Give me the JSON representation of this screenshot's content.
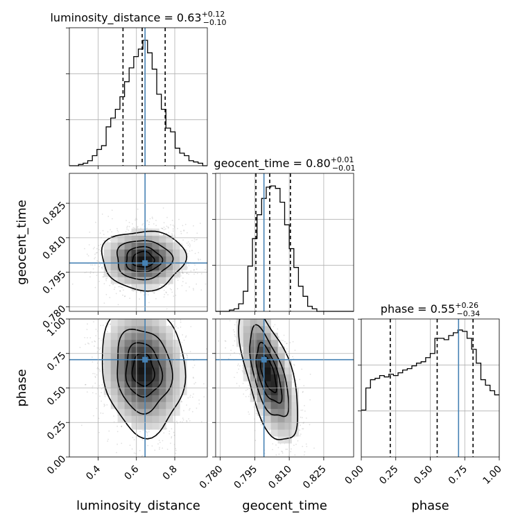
{
  "chart_data": {
    "type": "corner",
    "grid": true,
    "colors": {
      "truth": "#4682b4",
      "hist": "#000000",
      "density": "#000000",
      "quantile": "#000000",
      "grid": "#b0b0b0"
    },
    "parameters": [
      {
        "name": "luminosity_distance",
        "range": [
          0.25,
          0.97
        ],
        "ticks": [
          0.4,
          0.6,
          0.8
        ],
        "tick_labels": [
          "0.4",
          "0.6",
          "0.8"
        ]
      },
      {
        "name": "geocent_time",
        "range": [
          0.778,
          0.838
        ],
        "ticks": [
          0.78,
          0.795,
          0.81,
          0.825
        ],
        "tick_labels": [
          "0.780",
          "0.795",
          "0.810",
          "0.825"
        ]
      },
      {
        "name": "phase",
        "range": [
          0.0,
          1.0
        ],
        "ticks": [
          0.0,
          0.25,
          0.5,
          0.75,
          1.0
        ],
        "tick_labels": [
          "0.00",
          "0.25",
          "0.50",
          "0.75",
          "1.00"
        ]
      }
    ],
    "titles": [
      {
        "label": "luminosity_distance = 0.63",
        "sup": "+0.12",
        "sub": "−0.10"
      },
      {
        "label": "geocent_time = 0.80",
        "sup": "+0.01",
        "sub": "−0.01"
      },
      {
        "label": "phase = 0.55",
        "sup": "+0.26",
        "sub": "−0.34"
      }
    ],
    "truths": [
      0.645,
      0.799,
      0.705
    ],
    "quantiles": [
      [
        0.53,
        0.63,
        0.75
      ],
      [
        0.7955,
        0.8015,
        0.8105
      ],
      [
        0.21,
        0.55,
        0.81
      ]
    ],
    "marginals": [
      {
        "bin_edges": [
          0.25,
          0.274,
          0.298,
          0.322,
          0.346,
          0.37,
          0.394,
          0.418,
          0.442,
          0.466,
          0.49,
          0.514,
          0.538,
          0.562,
          0.586,
          0.61,
          0.634,
          0.658,
          0.682,
          0.706,
          0.73,
          0.754,
          0.778,
          0.802,
          0.826,
          0.85,
          0.874,
          0.898,
          0.922,
          0.946,
          0.97
        ],
        "counts": [
          0.0,
          0.0,
          0.01,
          0.02,
          0.04,
          0.08,
          0.13,
          0.16,
          0.31,
          0.38,
          0.45,
          0.55,
          0.67,
          0.78,
          0.87,
          0.93,
          1.0,
          0.9,
          0.77,
          0.57,
          0.45,
          0.3,
          0.27,
          0.14,
          0.1,
          0.08,
          0.04,
          0.03,
          0.02,
          0.0
        ],
        "ymax": 1.1
      },
      {
        "bin_edges": [
          0.778,
          0.78,
          0.782,
          0.784,
          0.786,
          0.788,
          0.79,
          0.792,
          0.794,
          0.796,
          0.798,
          0.8,
          0.802,
          0.804,
          0.806,
          0.808,
          0.81,
          0.812,
          0.814,
          0.816,
          0.818,
          0.82,
          0.822,
          0.824,
          0.826,
          0.828,
          0.83,
          0.832,
          0.834,
          0.836,
          0.838
        ],
        "counts": [
          0.0,
          0.0,
          0.0,
          0.01,
          0.02,
          0.06,
          0.16,
          0.36,
          0.58,
          0.77,
          0.9,
          0.99,
          1.0,
          0.98,
          0.87,
          0.69,
          0.5,
          0.35,
          0.2,
          0.12,
          0.04,
          0.02,
          0.0,
          0.0,
          0.0,
          0.0,
          0.0,
          0.0,
          0.0,
          0.0
        ],
        "ymax": 1.1
      },
      {
        "bin_edges": [
          0.0,
          0.0333,
          0.0667,
          0.1,
          0.1333,
          0.1667,
          0.2,
          0.2333,
          0.2667,
          0.3,
          0.3333,
          0.3667,
          0.4,
          0.4333,
          0.4667,
          0.5,
          0.5333,
          0.5667,
          0.6,
          0.6333,
          0.6667,
          0.7,
          0.7333,
          0.7667,
          0.8,
          0.8333,
          0.8667,
          0.9,
          0.9333,
          0.9667,
          1.0
        ],
        "counts": [
          0.34,
          0.5,
          0.56,
          0.57,
          0.59,
          0.58,
          0.6,
          0.59,
          0.61,
          0.63,
          0.64,
          0.66,
          0.68,
          0.69,
          0.72,
          0.75,
          0.86,
          0.86,
          0.85,
          0.88,
          0.9,
          0.92,
          0.91,
          0.86,
          0.78,
          0.68,
          0.56,
          0.52,
          0.48,
          0.45
        ],
        "ymax": 1.0
      }
    ],
    "joint_2d": [
      {
        "x_param": 0,
        "y_param": 1,
        "mean": [
          0.635,
          0.8005
        ],
        "sigma": [
          0.105,
          0.0062
        ],
        "rho": 0.0
      },
      {
        "x_param": 0,
        "y_param": 2,
        "mean": [
          0.635,
          0.63
        ],
        "sigma": [
          0.105,
          0.22
        ],
        "rho": -0.1
      },
      {
        "x_param": 1,
        "y_param": 2,
        "mean": [
          0.801,
          0.6
        ],
        "sigma": [
          0.0062,
          0.24
        ],
        "rho": -0.62
      }
    ],
    "contour_levels": [
      0.118,
      0.393,
      0.675,
      0.864
    ]
  }
}
